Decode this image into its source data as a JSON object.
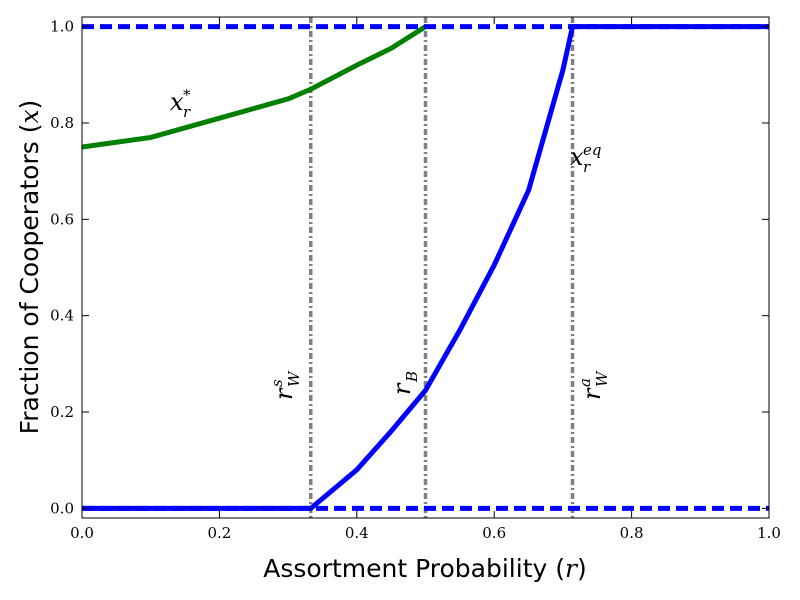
{
  "chart_data": {
    "type": "line",
    "xlabel": [
      "Assortment Probability (",
      "r",
      ")"
    ],
    "ylabel": [
      "Fraction of Cooperators (",
      "x",
      ")"
    ],
    "xlim": [
      0,
      1
    ],
    "ylim": [
      -0.02,
      1.02
    ],
    "xticks": [
      {
        "value": 0,
        "label": "0.0"
      },
      0.2,
      0.4,
      0.6,
      0.8,
      {
        "value": 1,
        "label": "1.0"
      }
    ],
    "yticks": [
      {
        "value": 0,
        "label": "0.0"
      },
      0.2,
      0.4,
      0.6,
      0.8,
      {
        "value": 1,
        "label": "1.0"
      }
    ],
    "series": [
      {
        "color": "#008000",
        "style": "solid",
        "x": [
          0,
          0.1,
          0.2,
          0.3,
          0.333,
          0.4,
          0.45,
          0.5
        ],
        "values": [
          0.75,
          0.77,
          0.81,
          0.85,
          0.87,
          0.92,
          0.955,
          1.0
        ]
      },
      {
        "color": "#0000ff",
        "style": "solid",
        "x": [
          0,
          0.333,
          0.4,
          0.45,
          0.5,
          0.55,
          0.6,
          0.65,
          0.7,
          0.714,
          1
        ],
        "values": [
          0,
          0,
          0.08,
          0.16,
          0.245,
          0.37,
          0.505,
          0.66,
          0.91,
          1.0,
          1.0
        ]
      },
      {
        "color": "#0000ff",
        "style": "dashed",
        "x": [
          0,
          1
        ],
        "values": [
          1.0,
          1.0
        ]
      },
      {
        "color": "#0000ff",
        "style": "dashed",
        "x": [
          0,
          1
        ],
        "values": [
          0,
          0
        ]
      }
    ],
    "vlines": {
      "color": "#808080",
      "x": [
        0.333,
        0.5,
        0.714
      ]
    },
    "annotations": [
      {
        "base": "x",
        "sub": "r",
        "sup": "*"
      },
      {
        "base": "x",
        "sub": "r",
        "sup": "eq"
      },
      {
        "base": "r",
        "sub": "W",
        "sup": "s"
      },
      {
        "base": "r",
        "sub": "B"
      },
      {
        "base": "r",
        "sub": "W",
        "sup": "a"
      }
    ]
  }
}
